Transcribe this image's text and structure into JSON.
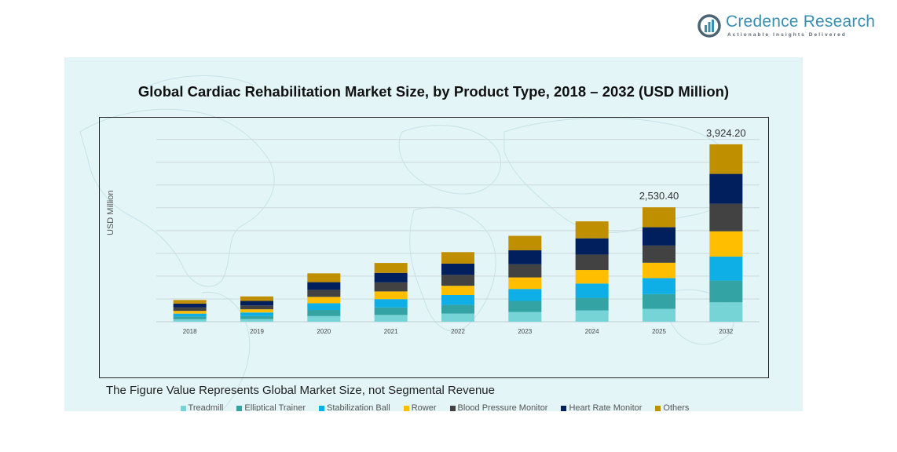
{
  "brand": {
    "name": "Credence Research",
    "tagline": "Actionable Insights Delivered",
    "color": "#3a8fb0"
  },
  "footnote": "The Figure Value Represents Global Market Size, not Segmental Revenue",
  "chart_data": {
    "type": "bar",
    "stacked": true,
    "title": "Global Cardiac Rehabilitation Market Size, by Product Type, 2018 – 2032 (USD Million)",
    "xlabel": "",
    "ylabel": "USD Million",
    "categories": [
      "2018",
      "2019",
      "2020",
      "2021",
      "2022",
      "2023",
      "2024",
      "2025",
      "2032"
    ],
    "grid": true,
    "legend_position": "bottom",
    "ylim": [
      0,
      4200
    ],
    "totals": [
      480,
      560,
      1070,
      1300,
      1540,
      1900,
      2220,
      2530.4,
      3924.2
    ],
    "data_labels": {
      "2025": "2,530.40",
      "2032": "3,924.20"
    },
    "series": [
      {
        "name": "Treadmill",
        "color": "#76d3d6",
        "values": [
          55,
          60,
          125,
          150,
          180,
          215,
          250,
          285,
          430
        ]
      },
      {
        "name": "Elliptical Trainer",
        "color": "#33a3a3",
        "values": [
          60,
          65,
          135,
          165,
          195,
          245,
          280,
          325,
          480
        ]
      },
      {
        "name": "Stabilization Ball",
        "color": "#0eaee6",
        "values": [
          65,
          80,
          150,
          185,
          215,
          265,
          315,
          355,
          530
        ]
      },
      {
        "name": "Rower",
        "color": "#ffbf00",
        "values": [
          60,
          70,
          140,
          170,
          205,
          255,
          300,
          340,
          560
        ]
      },
      {
        "name": "Blood Pressure Monitor",
        "color": "#424242",
        "values": [
          75,
          85,
          155,
          200,
          240,
          290,
          340,
          380,
          610
        ]
      },
      {
        "name": "Heart Rate Monitor",
        "color": "#001f5c",
        "values": [
          85,
          100,
          170,
          210,
          250,
          310,
          360,
          405,
          660
        ]
      },
      {
        "name": "Others",
        "color": "#bf8f00",
        "values": [
          80,
          100,
          195,
          220,
          255,
          320,
          375,
          440.4,
          654.2
        ]
      }
    ]
  }
}
